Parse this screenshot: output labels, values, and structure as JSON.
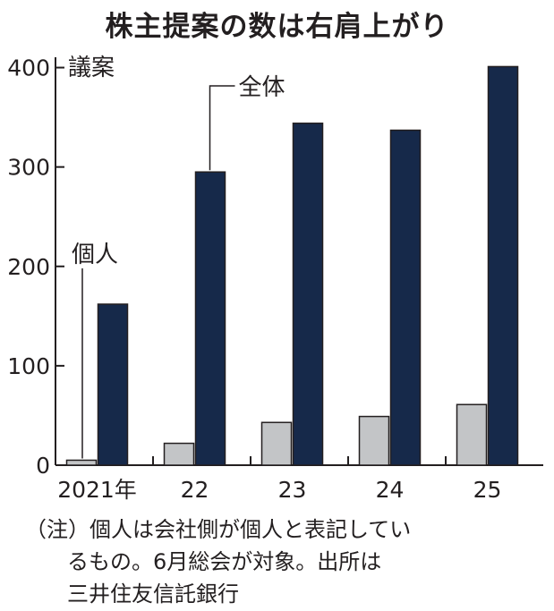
{
  "chart_data": {
    "type": "bar",
    "title": "株主提案の数は右肩上がり",
    "ylabel": "議案",
    "categories": [
      "2021年",
      "22",
      "23",
      "24",
      "25"
    ],
    "series": [
      {
        "name": "個人",
        "values": [
          5,
          22,
          43,
          49,
          61
        ],
        "color": "#c3c5c7"
      },
      {
        "name": "全体",
        "values": [
          162,
          295,
          344,
          337,
          401
        ],
        "color": "#16294a"
      }
    ],
    "yticks": [
      0,
      100,
      200,
      300,
      400
    ],
    "ylim": [
      0,
      405
    ],
    "grid": false
  },
  "note": {
    "line1": "（注）個人は会社側が個人と表記してい",
    "line2": "るもの。6月総会が対象。出所は",
    "line3": "三井住友信託銀行"
  }
}
